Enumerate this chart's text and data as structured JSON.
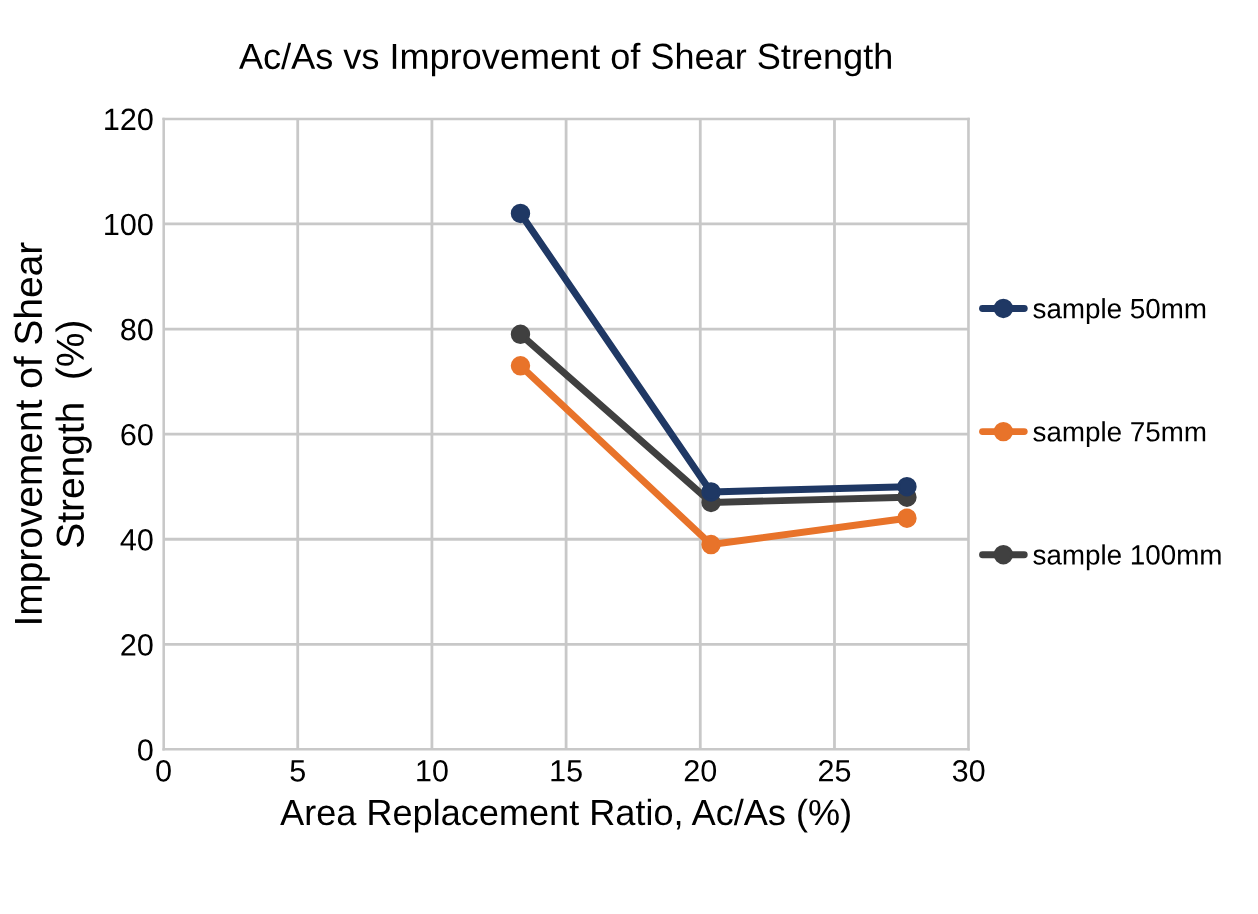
{
  "chart_data": {
    "type": "line",
    "title": "Ac/As vs Improvement of Shear Strength",
    "xlabel": "Area Replacement Ratio, Ac/As (%)",
    "ylabel": "Improvement of Shear\nStrength  (%)",
    "x": [
      13.3,
      20.4,
      27.7
    ],
    "series": [
      {
        "name": "sample 50mm",
        "color": "#1f3864",
        "values": [
          102,
          49,
          50
        ]
      },
      {
        "name": "sample 75mm",
        "color": "#e8732a",
        "values": [
          73,
          39,
          44
        ]
      },
      {
        "name": "sample 100mm",
        "color": "#404040",
        "values": [
          79,
          47,
          48
        ]
      }
    ],
    "xlim": [
      0,
      30
    ],
    "xticks": [
      0,
      5,
      10,
      15,
      20,
      25,
      30
    ],
    "ylim": [
      0,
      120
    ],
    "yticks": [
      0,
      20,
      40,
      60,
      80,
      100,
      120
    ],
    "grid": true,
    "legend": "right",
    "marker": "circle",
    "line_style": "solid"
  }
}
